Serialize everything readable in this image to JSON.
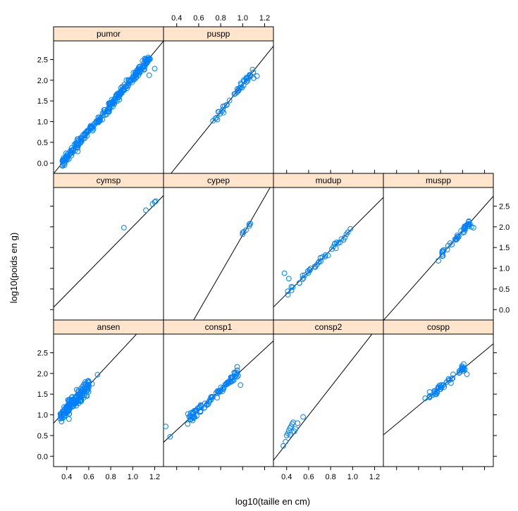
{
  "chart_data": {
    "type": "scatter",
    "layout": "lattice xyplot, 4 columns x 3 rows, per-panel regression line",
    "xlabel": "log10(taille en cm)",
    "ylabel": "log10(poids en g)",
    "xlim": [
      0.28,
      1.28
    ],
    "ylim": [
      -0.25,
      2.95
    ],
    "x_ticks": [
      "0.4",
      "0.6",
      "0.8",
      "1.0",
      "1.2"
    ],
    "y_ticks": [
      "0.0",
      "0.5",
      "1.0",
      "1.5",
      "2.0",
      "2.5"
    ],
    "colors": {
      "strip": "#ffe5cc",
      "points": "#0080ff",
      "line": "#000000"
    },
    "panels": [
      {
        "name": "pumor",
        "row": 0,
        "col": 0,
        "line": [
          3.2,
          -1.15
        ],
        "points": {
          "generated": true,
          "xmin": 0.35,
          "xmax": 1.17,
          "count": 260,
          "noise": 0.05
        },
        "extra_points": [
          [
            0.36,
            0.05
          ],
          [
            0.38,
            -0.05
          ],
          [
            0.42,
            0.1
          ],
          [
            0.45,
            0.25
          ],
          [
            0.5,
            0.28
          ],
          [
            1.15,
            2.12
          ],
          [
            1.2,
            2.28
          ]
        ]
      },
      {
        "name": "puspp",
        "row": 0,
        "col": 1,
        "line": [
          3.3,
          -1.4
        ],
        "points": {
          "generated": true,
          "xmin": 0.73,
          "xmax": 1.12,
          "count": 40,
          "noise": 0.04
        },
        "extra_points": [
          [
            0.73,
            1.02
          ],
          [
            0.77,
            1.05
          ],
          [
            1.13,
            2.1
          ],
          [
            1.1,
            2.05
          ]
        ]
      },
      {
        "name": "cymsp",
        "row": 1,
        "col": 0,
        "line": [
          2.7,
          -0.7
        ],
        "points": {
          "generated": false
        },
        "extra_points": [
          [
            0.92,
            1.98
          ],
          [
            1.12,
            2.4
          ],
          [
            1.18,
            2.55
          ],
          [
            1.2,
            2.6
          ],
          [
            1.21,
            2.62
          ]
        ]
      },
      {
        "name": "cypep",
        "row": 1,
        "col": 1,
        "line": [
          4.6,
          -2.8
        ],
        "points": {
          "generated": false
        },
        "extra_points": [
          [
            1.0,
            1.82
          ],
          [
            1.0,
            1.86
          ],
          [
            1.01,
            1.88
          ],
          [
            1.03,
            1.92
          ],
          [
            1.06,
            2.02
          ],
          [
            1.06,
            2.06
          ],
          [
            1.07,
            2.08
          ]
        ]
      },
      {
        "name": "mudup",
        "row": 1,
        "col": 2,
        "line": [
          2.65,
          -0.68
        ],
        "points": {
          "generated": true,
          "xmin": 0.4,
          "xmax": 0.98,
          "count": 40,
          "noise": 0.04
        },
        "extra_points": [
          [
            0.38,
            0.88
          ],
          [
            0.42,
            0.75
          ],
          [
            0.98,
            1.95
          ]
        ]
      },
      {
        "name": "muspp",
        "row": 1,
        "col": 3,
        "line": [
          3.0,
          -1.1
        ],
        "points": {
          "generated": true,
          "xmin": 0.79,
          "xmax": 1.07,
          "count": 40,
          "noise": 0.04
        },
        "extra_points": [
          [
            0.78,
            1.18
          ],
          [
            1.08,
            2.0
          ],
          [
            1.1,
            1.98
          ]
        ]
      },
      {
        "name": "ansen",
        "row": 2,
        "col": 0,
        "line": [
          2.85,
          0.0
        ],
        "points": {
          "generated": true,
          "xmin": 0.34,
          "xmax": 0.6,
          "count": 160,
          "noise": 0.09
        },
        "extra_points": [
          [
            0.42,
            0.9
          ],
          [
            0.6,
            1.7
          ],
          [
            0.63,
            1.75
          ],
          [
            0.68,
            1.97
          ]
        ]
      },
      {
        "name": "consp1",
        "row": 2,
        "col": 1,
        "line": [
          2.45,
          -0.35
        ],
        "points": {
          "generated": true,
          "xmin": 0.5,
          "xmax": 0.96,
          "count": 90,
          "noise": 0.06
        },
        "extra_points": [
          [
            0.3,
            0.72
          ],
          [
            0.34,
            0.47
          ],
          [
            0.5,
            0.78
          ],
          [
            0.95,
            2.16
          ],
          [
            0.98,
            1.72
          ]
        ]
      },
      {
        "name": "consp2",
        "row": 2,
        "col": 2,
        "line": [
          3.4,
          -1.05
        ],
        "points": {
          "generated": false
        },
        "extra_points": [
          [
            0.37,
            0.25
          ],
          [
            0.39,
            0.35
          ],
          [
            0.4,
            0.5
          ],
          [
            0.41,
            0.55
          ],
          [
            0.42,
            0.62
          ],
          [
            0.43,
            0.68
          ],
          [
            0.44,
            0.72
          ],
          [
            0.45,
            0.78
          ],
          [
            0.46,
            0.82
          ],
          [
            0.48,
            0.66
          ],
          [
            0.5,
            0.8
          ],
          [
            0.55,
            0.95
          ],
          [
            0.43,
            0.52
          ],
          [
            0.47,
            0.6
          ]
        ]
      },
      {
        "name": "cospp",
        "row": 2,
        "col": 3,
        "line": [
          2.2,
          -0.1
        ],
        "points": {
          "generated": true,
          "xmin": 0.68,
          "xmax": 1.02,
          "count": 45,
          "noise": 0.05
        },
        "extra_points": [
          [
            0.66,
            1.4
          ],
          [
            0.7,
            1.42
          ],
          [
            1.02,
            2.1
          ],
          [
            1.04,
            1.98
          ]
        ]
      }
    ]
  }
}
